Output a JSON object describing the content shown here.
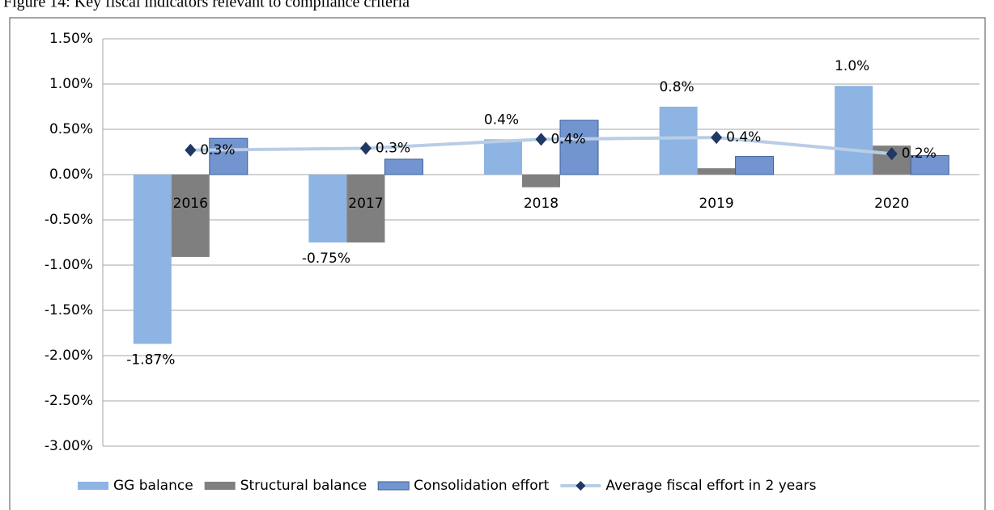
{
  "chart_data": {
    "type": "bar",
    "title": "Figure 14: Key fiscal indicators relevant to compliance criteria",
    "categories": [
      "2016",
      "2017",
      "2018",
      "2019",
      "2020"
    ],
    "series": [
      {
        "name": "GG balance",
        "type": "bar",
        "color": "#8db4e2",
        "values": [
          -1.87,
          -0.75,
          0.39,
          0.75,
          0.98
        ],
        "value_labels": [
          "-1.87%",
          "-0.75%",
          "0.4%",
          "0.8%",
          "1.0%"
        ]
      },
      {
        "name": "Structural balance",
        "type": "bar",
        "color": "#7f7f7f",
        "values": [
          -0.91,
          -0.75,
          -0.14,
          0.07,
          0.32
        ]
      },
      {
        "name": "Consolidation effort",
        "type": "bar",
        "color": "#7295d0",
        "values": [
          0.4,
          0.17,
          0.6,
          0.2,
          0.21
        ]
      },
      {
        "name": "Average fiscal effort in 2 years",
        "type": "line",
        "color": "#b9cde5",
        "marker_color": "#1f3864",
        "values": [
          0.27,
          0.29,
          0.39,
          0.41,
          0.23
        ],
        "value_labels": [
          "0.3%",
          "0.3%",
          "0.4%",
          "0.4%",
          "0.2%"
        ]
      }
    ],
    "ylim": [
      -3,
      1.5
    ],
    "yticks": [
      {
        "value": 1.5,
        "label": "1.50%"
      },
      {
        "value": 1,
        "label": "1.00%"
      },
      {
        "value": 0.5,
        "label": "0.50%"
      },
      {
        "value": 0,
        "label": "0.00%"
      },
      {
        "value": -0.5,
        "label": "-0.50%"
      },
      {
        "value": -1,
        "label": "-1.00%"
      },
      {
        "value": -1.5,
        "label": "-1.50%"
      },
      {
        "value": -2,
        "label": "-2.00%"
      },
      {
        "value": -2.5,
        "label": "-2.50%"
      },
      {
        "value": -3,
        "label": "-3.00%"
      }
    ],
    "grid": true,
    "legend": "bottom"
  }
}
